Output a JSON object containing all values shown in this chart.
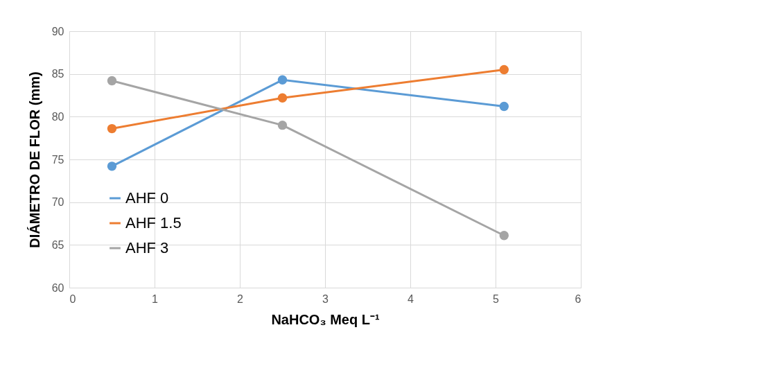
{
  "chart_data": {
    "type": "line",
    "xlabel": "NaHCO₃ Meq L⁻¹",
    "ylabel": "DIÁMETRO DE FLOR (mm)",
    "x": [
      0.5,
      2.5,
      5.1
    ],
    "series": [
      {
        "name": "AHF 0",
        "color": "#5b9bd5",
        "values": [
          74.2,
          84.3,
          81.2
        ]
      },
      {
        "name": "AHF 1.5",
        "color": "#ed7d31",
        "values": [
          78.6,
          82.2,
          85.5
        ]
      },
      {
        "name": "AHF 3",
        "color": "#a5a5a5",
        "values": [
          84.2,
          79.0,
          66.1
        ]
      }
    ],
    "xlim": [
      0,
      6
    ],
    "xticks": [
      0,
      1,
      2,
      3,
      4,
      5,
      6
    ],
    "ylim": [
      60,
      90
    ],
    "yticks": [
      60,
      65,
      70,
      75,
      80,
      85,
      90
    ],
    "grid": true,
    "legend": "left",
    "marker": "circle",
    "line_style": "solid"
  }
}
